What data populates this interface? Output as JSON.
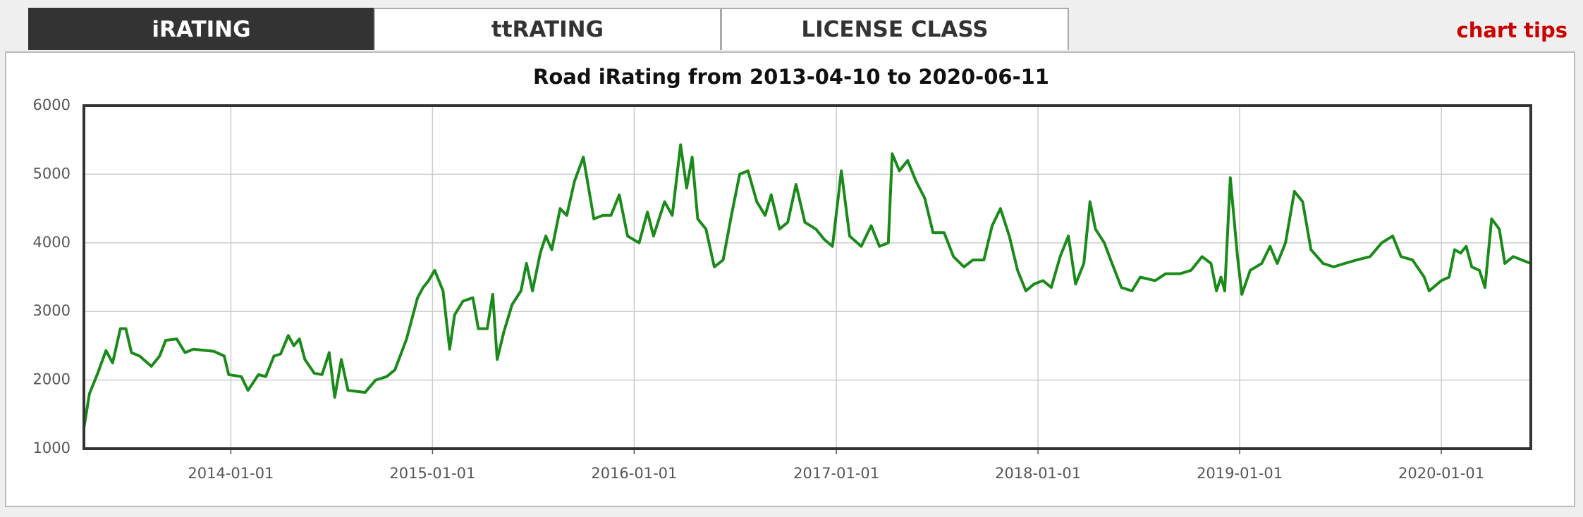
{
  "tabs": [
    "iRATING",
    "ttRATING",
    "LICENSE CLASS"
  ],
  "chart_tips": "chart tips",
  "chart_data": {
    "type": "line",
    "title": "Road iRating from 2013-04-10 to 2020-06-11",
    "color": "#1a8a1a",
    "grid": true,
    "xlim": [
      "2013-04-10",
      "2020-06-11"
    ],
    "xticks": [
      "2014-01-01",
      "2015-01-01",
      "2016-01-01",
      "2017-01-01",
      "2018-01-01",
      "2019-01-01",
      "2020-01-01"
    ],
    "ylim": [
      1000,
      6000
    ],
    "yticks": [
      1000,
      2000,
      3000,
      4000,
      5000,
      6000
    ],
    "x": [
      "2013-04-10",
      "2013-04-20",
      "2013-05-05",
      "2013-05-20",
      "2013-06-01",
      "2013-06-15",
      "2013-06-25",
      "2013-07-05",
      "2013-07-20",
      "2013-08-10",
      "2013-08-25",
      "2013-09-05",
      "2013-09-25",
      "2013-10-10",
      "2013-10-25",
      "2013-12-01",
      "2013-12-20",
      "2013-12-28",
      "2014-01-20",
      "2014-02-01",
      "2014-02-20",
      "2014-03-05",
      "2014-03-20",
      "2014-04-01",
      "2014-04-15",
      "2014-04-25",
      "2014-05-05",
      "2014-05-15",
      "2014-06-01",
      "2014-06-15",
      "2014-06-28",
      "2014-07-08",
      "2014-07-20",
      "2014-08-01",
      "2014-09-01",
      "2014-09-20",
      "2014-10-10",
      "2014-10-25",
      "2014-11-15",
      "2014-12-05",
      "2014-12-15",
      "2014-12-25",
      "2015-01-05",
      "2015-01-20",
      "2015-02-01",
      "2015-02-10",
      "2015-02-25",
      "2015-03-15",
      "2015-03-25",
      "2015-04-10",
      "2015-04-20",
      "2015-04-28",
      "2015-05-10",
      "2015-05-25",
      "2015-06-10",
      "2015-06-20",
      "2015-07-01",
      "2015-07-15",
      "2015-07-25",
      "2015-08-05",
      "2015-08-20",
      "2015-09-01",
      "2015-09-15",
      "2015-10-01",
      "2015-10-20",
      "2015-11-05",
      "2015-11-20",
      "2015-12-05",
      "2015-12-20",
      "2016-01-10",
      "2016-01-25",
      "2016-02-05",
      "2016-02-25",
      "2016-03-10",
      "2016-03-25",
      "2016-04-05",
      "2016-04-15",
      "2016-04-25",
      "2016-05-10",
      "2016-05-25",
      "2016-06-10",
      "2016-06-25",
      "2016-07-10",
      "2016-07-25",
      "2016-08-10",
      "2016-08-25",
      "2016-09-05",
      "2016-09-20",
      "2016-10-05",
      "2016-10-20",
      "2016-11-05",
      "2016-11-25",
      "2016-12-10",
      "2016-12-25",
      "2017-01-10",
      "2017-01-25",
      "2017-02-15",
      "2017-03-05",
      "2017-03-20",
      "2017-04-05",
      "2017-04-12",
      "2017-04-25",
      "2017-05-10",
      "2017-05-25",
      "2017-06-10",
      "2017-06-25",
      "2017-07-15",
      "2017-08-01",
      "2017-08-20",
      "2017-09-05",
      "2017-09-25",
      "2017-10-10",
      "2017-10-25",
      "2017-11-10",
      "2017-11-25",
      "2017-12-10",
      "2017-12-25",
      "2018-01-10",
      "2018-01-25",
      "2018-02-10",
      "2018-02-25",
      "2018-03-10",
      "2018-03-25",
      "2018-04-05",
      "2018-04-15",
      "2018-05-01",
      "2018-05-15",
      "2018-06-01",
      "2018-06-20",
      "2018-07-05",
      "2018-08-01",
      "2018-08-20",
      "2018-09-15",
      "2018-10-05",
      "2018-10-25",
      "2018-11-10",
      "2018-11-20",
      "2018-11-28",
      "2018-12-05",
      "2018-12-15",
      "2018-12-28",
      "2019-01-05",
      "2019-01-20",
      "2019-02-10",
      "2019-02-25",
      "2019-03-10",
      "2019-03-25",
      "2019-04-10",
      "2019-04-25",
      "2019-05-10",
      "2019-06-01",
      "2019-06-20",
      "2019-07-10",
      "2019-08-01",
      "2019-08-25",
      "2019-09-15",
      "2019-10-05",
      "2019-10-20",
      "2019-11-10",
      "2019-12-01",
      "2019-12-10",
      "2020-01-01",
      "2020-01-15",
      "2020-01-25",
      "2020-02-05",
      "2020-02-15",
      "2020-02-25",
      "2020-03-10",
      "2020-03-20",
      "2020-04-01",
      "2020-04-15",
      "2020-04-25",
      "2020-05-10",
      "2020-06-11"
    ],
    "values": [
      1300,
      1800,
      2100,
      2430,
      2250,
      2750,
      2750,
      2400,
      2350,
      2200,
      2350,
      2580,
      2600,
      2400,
      2450,
      2420,
      2350,
      2080,
      2050,
      1850,
      2080,
      2050,
      2350,
      2380,
      2650,
      2500,
      2600,
      2300,
      2100,
      2080,
      2400,
      1750,
      2300,
      1850,
      1820,
      2000,
      2050,
      2150,
      2600,
      3200,
      3350,
      3450,
      3600,
      3300,
      2450,
      2950,
      3150,
      3200,
      2750,
      2750,
      3250,
      2300,
      2700,
      3100,
      3300,
      3700,
      3300,
      3850,
      4100,
      3900,
      4500,
      4400,
      4900,
      5250,
      4350,
      4400,
      4400,
      4700,
      4100,
      4000,
      4450,
      4100,
      4600,
      4400,
      5430,
      4800,
      5250,
      4350,
      4200,
      3650,
      3750,
      4400,
      5000,
      5050,
      4600,
      4400,
      4700,
      4200,
      4300,
      4850,
      4300,
      4200,
      4050,
      3950,
      5050,
      4100,
      3950,
      4250,
      3950,
      4000,
      5300,
      5050,
      5200,
      4900,
      4650,
      4150,
      4150,
      3800,
      3650,
      3750,
      3750,
      4250,
      4500,
      4100,
      3600,
      3300,
      3400,
      3450,
      3350,
      3800,
      4100,
      3400,
      3700,
      4600,
      4200,
      4000,
      3700,
      3350,
      3300,
      3500,
      3450,
      3550,
      3550,
      3600,
      3800,
      3700,
      3300,
      3500,
      3300,
      4950,
      3800,
      3250,
      3600,
      3700,
      3950,
      3700,
      4000,
      4750,
      4600,
      3900,
      3700,
      3650,
      3700,
      3750,
      3800,
      4000,
      4100,
      3800,
      3750,
      3500,
      3300,
      3450,
      3500,
      3900,
      3850,
      3950,
      3650,
      3600,
      3350,
      4350,
      4200,
      3700,
      3800,
      3700
    ]
  }
}
